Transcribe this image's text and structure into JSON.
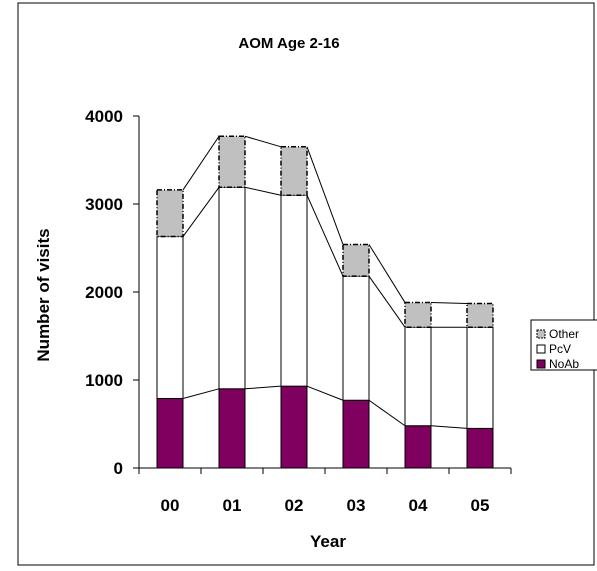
{
  "chart_data": {
    "type": "bar",
    "stacked": true,
    "title": "AOM Age 2-16",
    "xlabel": "Year",
    "ylabel": "Number of visits",
    "categories": [
      "00",
      "01",
      "02",
      "03",
      "04",
      "05"
    ],
    "ylim": [
      0,
      4000
    ],
    "yticks": [
      0,
      1000,
      2000,
      3000,
      4000
    ],
    "series": [
      {
        "name": "NoAb",
        "values": [
          790,
          900,
          930,
          770,
          480,
          450
        ],
        "fill": "#800060",
        "stroke": "#000000",
        "dash": false
      },
      {
        "name": "PcV",
        "values": [
          1840,
          2290,
          2170,
          1410,
          1120,
          1150
        ],
        "fill": "#ffffff",
        "stroke": "#000000",
        "dash": false
      },
      {
        "name": "Other",
        "values": [
          530,
          580,
          550,
          360,
          280,
          270
        ],
        "fill": "#c0c0c0",
        "stroke": "#000000",
        "dash": true
      }
    ],
    "legend_position": "right",
    "legend_order": [
      "Other",
      "PcV",
      "NoAb"
    ],
    "connector_lines": true,
    "grid": false
  }
}
